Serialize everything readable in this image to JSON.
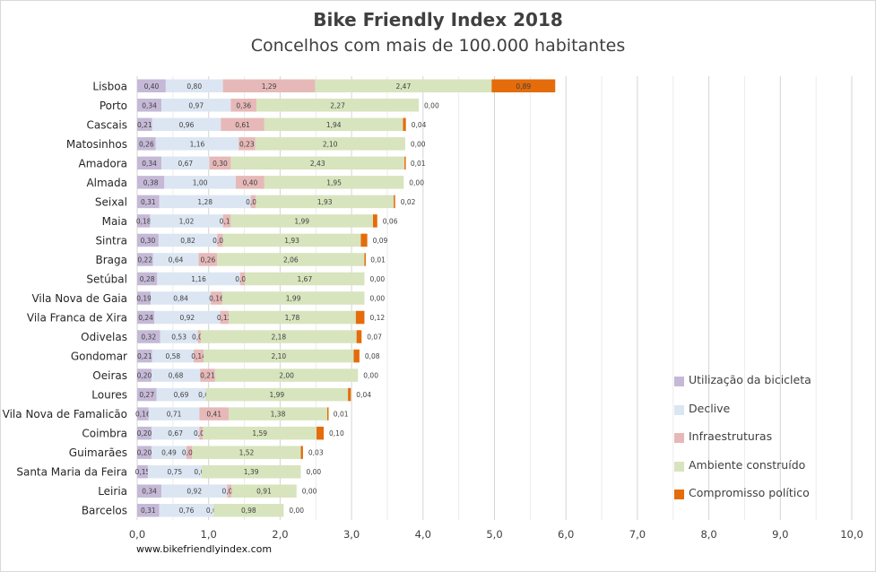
{
  "chart_data": {
    "type": "bar",
    "orientation": "horizontal",
    "stacked": true,
    "title": "Bike Friendly Index 2018",
    "subtitle": "Concelhos com mais de 100.000 habitantes",
    "source": "www.bikefriendlyindex.com",
    "xlim": [
      0,
      10
    ],
    "xticks": [
      "0,0",
      "1,0",
      "2,0",
      "3,0",
      "4,0",
      "5,0",
      "6,0",
      "7,0",
      "8,0",
      "9,0",
      "10,0"
    ],
    "grid": "vertical",
    "legend_position": "bottom-right",
    "categories": [
      "Lisboa",
      "Porto",
      "Cascais",
      "Matosinhos",
      "Amadora",
      "Almada",
      "Seixal",
      "Maia",
      "Sintra",
      "Braga",
      "Setúbal",
      "Vila Nova de Gaia",
      "Vila Franca de Xira",
      "Odivelas",
      "Gondomar",
      "Oeiras",
      "Loures",
      "Vila Nova de Famalicão",
      "Coimbra",
      "Guimarães",
      "Santa Maria da Feira",
      "Leiria",
      "Barcelos"
    ],
    "series": [
      {
        "name": "Utilização da bicicleta",
        "color": "#c5b9d7",
        "values": [
          0.4,
          0.34,
          0.21,
          0.26,
          0.34,
          0.38,
          0.31,
          0.18,
          0.3,
          0.22,
          0.28,
          0.19,
          0.24,
          0.32,
          0.21,
          0.2,
          0.27,
          0.16,
          0.2,
          0.2,
          0.15,
          0.34,
          0.31
        ],
        "labels": [
          "0,40",
          "0,34",
          "0,21",
          "0,26",
          "0,34",
          "0,38",
          "0,31",
          "0,18",
          "0,30",
          "0,22",
          "0,28",
          "0,19",
          "0,24",
          "0,32",
          "0,21",
          "0,20",
          "0,27",
          "0,16",
          "0,20",
          "0,20",
          "0,15",
          "0,34",
          "0,31"
        ]
      },
      {
        "name": "Declive",
        "color": "#dce6f2",
        "values": [
          0.8,
          0.97,
          0.96,
          1.16,
          0.67,
          1.0,
          1.28,
          1.02,
          0.82,
          0.64,
          1.16,
          0.84,
          0.92,
          0.53,
          0.58,
          0.68,
          0.69,
          0.71,
          0.67,
          0.49,
          0.75,
          0.92,
          0.76
        ],
        "labels": [
          "0,80",
          "0,97",
          "0,96",
          "1,16",
          "0,67",
          "1,00",
          "1,28",
          "1,02",
          "0,82",
          "0,64",
          "1,16",
          "0,84",
          "0,92",
          "0,53",
          "0,58",
          "0,68",
          "0,69",
          "0,71",
          "0,67",
          "0,49",
          "0,75",
          "0,92",
          "0,76"
        ]
      },
      {
        "name": "Infraestruturas",
        "color": "#e6b9b8",
        "values": [
          1.29,
          0.36,
          0.61,
          0.23,
          0.3,
          0.4,
          0.07,
          0.11,
          0.08,
          0.26,
          0.07,
          0.16,
          0.12,
          0.04,
          0.14,
          0.21,
          0.0,
          0.41,
          0.05,
          0.08,
          0.0,
          0.06,
          0.0
        ],
        "labels": [
          "1,29",
          "0,36",
          "0,61",
          "0,23",
          "0,30",
          "0,40",
          "0,07",
          "0,11",
          "0,08",
          "0,26",
          "0,07",
          "0,16",
          "0,12",
          "0,04",
          "0,14",
          "0,21",
          "0,00",
          "0,41",
          "0,05",
          "0,08",
          "0,00",
          "0,06",
          "0,00"
        ]
      },
      {
        "name": "Ambiente construído",
        "color": "#d7e4bd",
        "values": [
          2.47,
          2.27,
          1.94,
          2.1,
          2.43,
          1.95,
          1.93,
          1.99,
          1.93,
          2.06,
          1.67,
          1.99,
          1.78,
          2.18,
          2.1,
          2.0,
          1.99,
          1.38,
          1.59,
          1.52,
          1.39,
          0.91,
          0.98
        ],
        "labels": [
          "2,47",
          "2,27",
          "1,94",
          "2,10",
          "2,43",
          "1,95",
          "1,93",
          "1,99",
          "1,93",
          "2,06",
          "1,67",
          "1,99",
          "1,78",
          "2,18",
          "2,10",
          "2,00",
          "1,99",
          "1,38",
          "1,59",
          "1,52",
          "1,39",
          "0,91",
          "0,98"
        ]
      },
      {
        "name": "Compromisso político",
        "color": "#e46c0a",
        "values": [
          0.89,
          0.0,
          0.04,
          0.0,
          0.01,
          0.0,
          0.02,
          0.06,
          0.09,
          0.01,
          0.0,
          0.0,
          0.12,
          0.07,
          0.08,
          0.0,
          0.04,
          0.01,
          0.1,
          0.03,
          0.0,
          0.0,
          0.0
        ],
        "labels": [
          "0,89",
          "0,00",
          "0,04",
          "0,00",
          "0,01",
          "0,00",
          "0,02",
          "0,06",
          "0,09",
          "0,01",
          "0,00",
          "0,00",
          "0,12",
          "0,07",
          "0,08",
          "0,00",
          "0,04",
          "0,01",
          "0,10",
          "0,03",
          "0,00",
          "0,00",
          "0,00"
        ]
      }
    ]
  }
}
